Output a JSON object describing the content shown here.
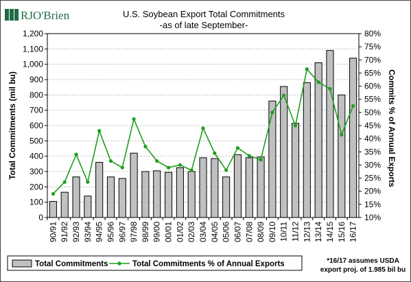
{
  "logo": {
    "text": "RJO'Brien"
  },
  "chart_data": {
    "type": "bar",
    "title": "U.S. Soybean Export Total Commitments",
    "subtitle": "-as of late September-",
    "ylabel": "Total Commitments (mil bu)",
    "y2label": "Commits % of Annual Exports",
    "ylim": [
      0,
      1200
    ],
    "y2lim": [
      10,
      80
    ],
    "grid": true,
    "legend_position": "bottom",
    "categories": [
      "90/91",
      "91/92",
      "92/93",
      "93/94",
      "94/95",
      "95/96",
      "96/97",
      "97/98",
      "98/99",
      "99/00",
      "00/01",
      "01/02",
      "02/03",
      "03/04",
      "04/05",
      "05/06",
      "06/07",
      "07/08",
      "08/09",
      "09/10",
      "10/11",
      "11/12",
      "12/13",
      "13/14",
      "14/15",
      "15/16",
      "16/17"
    ],
    "yticks": [
      "0",
      "100",
      "200",
      "300",
      "400",
      "500",
      "600",
      "700",
      "800",
      "900",
      "1,000",
      "1,100",
      "1,200"
    ],
    "y2ticks": [
      "10%",
      "15%",
      "20%",
      "25%",
      "30%",
      "35%",
      "40%",
      "45%",
      "50%",
      "55%",
      "60%",
      "65%",
      "70%",
      "75%",
      "80%"
    ],
    "series": [
      {
        "name": "Total Commitments",
        "kind": "bar",
        "color": "#c0c0c0",
        "values": [
          105,
          165,
          265,
          140,
          360,
          265,
          255,
          420,
          300,
          305,
          295,
          325,
          300,
          390,
          385,
          265,
          410,
          390,
          395,
          760,
          855,
          615,
          880,
          1010,
          1090,
          800,
          1040
        ]
      },
      {
        "name": "Total Commitments % of Annual Exports",
        "kind": "line",
        "color": "#1e9e1e",
        "values": [
          19.0,
          23.5,
          34.0,
          23.5,
          43.0,
          31.5,
          29.0,
          47.5,
          37.0,
          31.5,
          29.0,
          30.0,
          28.0,
          44.0,
          34.5,
          28.0,
          36.5,
          33.5,
          32.0,
          50.0,
          56.5,
          45.0,
          66.5,
          61.5,
          59.0,
          41.5,
          52.5
        ]
      }
    ],
    "note": [
      "*16/17 assumes USDA",
      "export proj. of 1.985 bil bu"
    ]
  }
}
